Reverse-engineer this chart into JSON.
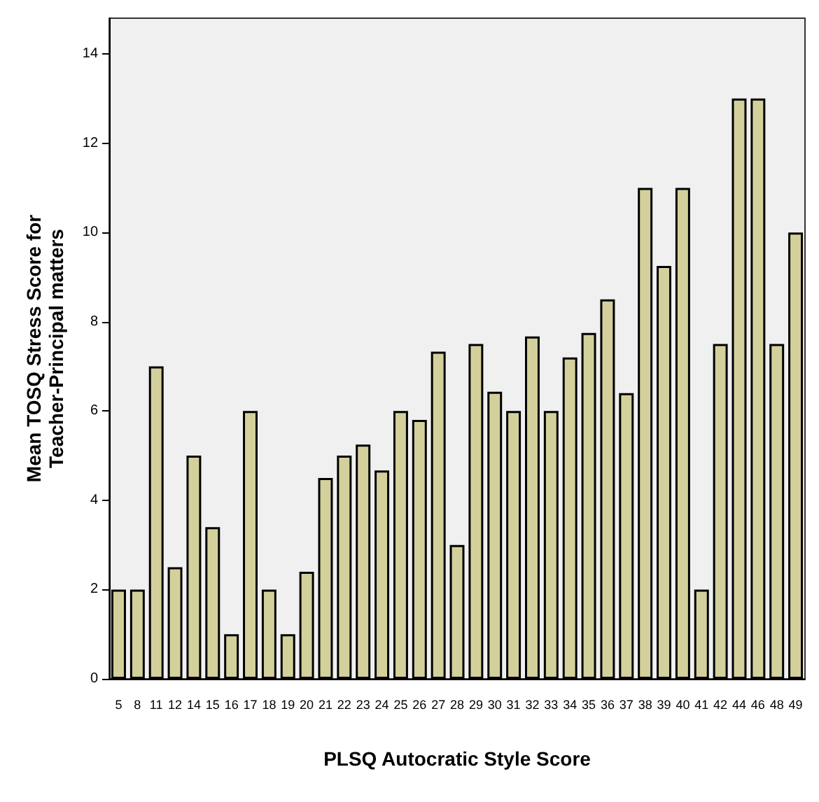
{
  "chart_data": {
    "type": "bar",
    "xlabel": "PLSQ Autocratic Style Score",
    "ylabel": "Mean TOSQ Stress Score for\nTeacher-Principal matters",
    "categories": [
      "5",
      "8",
      "11",
      "12",
      "14",
      "15",
      "16",
      "17",
      "18",
      "19",
      "20",
      "21",
      "22",
      "23",
      "24",
      "25",
      "26",
      "27",
      "28",
      "29",
      "30",
      "31",
      "32",
      "33",
      "34",
      "35",
      "36",
      "37",
      "38",
      "39",
      "40",
      "41",
      "42",
      "44",
      "46",
      "48",
      "49"
    ],
    "values": [
      2,
      2,
      7,
      2.5,
      5,
      3.4,
      1,
      6,
      2,
      1,
      2.4,
      4.5,
      5,
      5.25,
      4.67,
      6,
      5.8,
      7.33,
      3,
      7.5,
      6.43,
      6,
      7.67,
      6,
      7.2,
      7.75,
      8.5,
      6.4,
      11,
      9.25,
      11,
      2,
      7.5,
      13,
      13,
      7.5,
      10
    ],
    "color": "#d4d09c",
    "ylim": [
      0,
      14.8
    ],
    "yticks": [
      0,
      2,
      4,
      6,
      8,
      10,
      12,
      14
    ],
    "grid": false
  }
}
